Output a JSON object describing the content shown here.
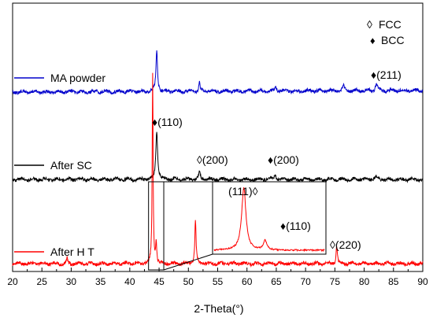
{
  "chart_data": {
    "type": "line",
    "xlabel": "2-Theta(°)",
    "xlim": [
      20,
      90
    ],
    "x_ticks": [
      "20",
      "25",
      "30",
      "35",
      "40",
      "45",
      "50",
      "55",
      "60",
      "65",
      "70",
      "75",
      "80",
      "85",
      "90"
    ],
    "y_axis_visible": false,
    "legend": {
      "position": "top-right",
      "entries": [
        {
          "symbol": "◊",
          "label": "FCC"
        },
        {
          "symbol": "♦",
          "label": "BCC"
        }
      ]
    },
    "series": [
      {
        "name": "MA powder",
        "color": "#0000cc",
        "baseline": 0.0,
        "peaks": [
          {
            "x": 44.6,
            "height": 0.3,
            "width": 0.3
          },
          {
            "x": 51.9,
            "height": 0.06,
            "width": 0.25
          },
          {
            "x": 64.9,
            "height": 0.03,
            "width": 0.35
          },
          {
            "x": 76.5,
            "height": 0.03,
            "width": 0.4
          },
          {
            "x": 82.1,
            "height": 0.05,
            "width": 0.4
          }
        ]
      },
      {
        "name": "After SC",
        "color": "#000000",
        "baseline": 0.0,
        "peaks": [
          {
            "x": 44.6,
            "height": 0.42,
            "width": 0.35
          },
          {
            "x": 51.9,
            "height": 0.07,
            "width": 0.3
          },
          {
            "x": 64.8,
            "height": 0.05,
            "width": 0.3
          },
          {
            "x": 82.0,
            "height": 0.03,
            "width": 0.4
          }
        ]
      },
      {
        "name": "After H T",
        "color": "#ff0000",
        "baseline": 0.0,
        "peaks": [
          {
            "x": 29.3,
            "height": 0.03,
            "width": 0.2
          },
          {
            "x": 43.9,
            "height": 1.0,
            "width": 0.18
          },
          {
            "x": 44.5,
            "height": 0.12,
            "width": 0.2
          },
          {
            "x": 51.2,
            "height": 0.23,
            "width": 0.25
          },
          {
            "x": 75.3,
            "height": 0.1,
            "width": 0.25
          }
        ]
      }
    ],
    "annotations": [
      {
        "series": "MA powder",
        "x": 82.1,
        "symbol": "♦",
        "text": "(211)"
      },
      {
        "series": "After SC",
        "x": 44.6,
        "symbol": "♦",
        "text": "(110)"
      },
      {
        "series": "After SC",
        "x": 51.9,
        "symbol": "◊",
        "text": "(200)"
      },
      {
        "series": "After SC",
        "x": 64.8,
        "symbol": "♦",
        "text": "(200)"
      },
      {
        "series": "After H T",
        "x": 75.3,
        "symbol": "◊",
        "text": "(220)"
      }
    ],
    "inset": {
      "zoom_range": [
        43.2,
        45.8
      ],
      "peaks": [
        {
          "x": 43.9,
          "height": 1.0,
          "width": 0.12
        },
        {
          "x": 44.4,
          "height": 0.15,
          "width": 0.1
        }
      ],
      "labels": [
        {
          "text": "(111)",
          "symbol": "◊"
        },
        {
          "text": "(110)",
          "symbol": "♦"
        }
      ]
    }
  }
}
